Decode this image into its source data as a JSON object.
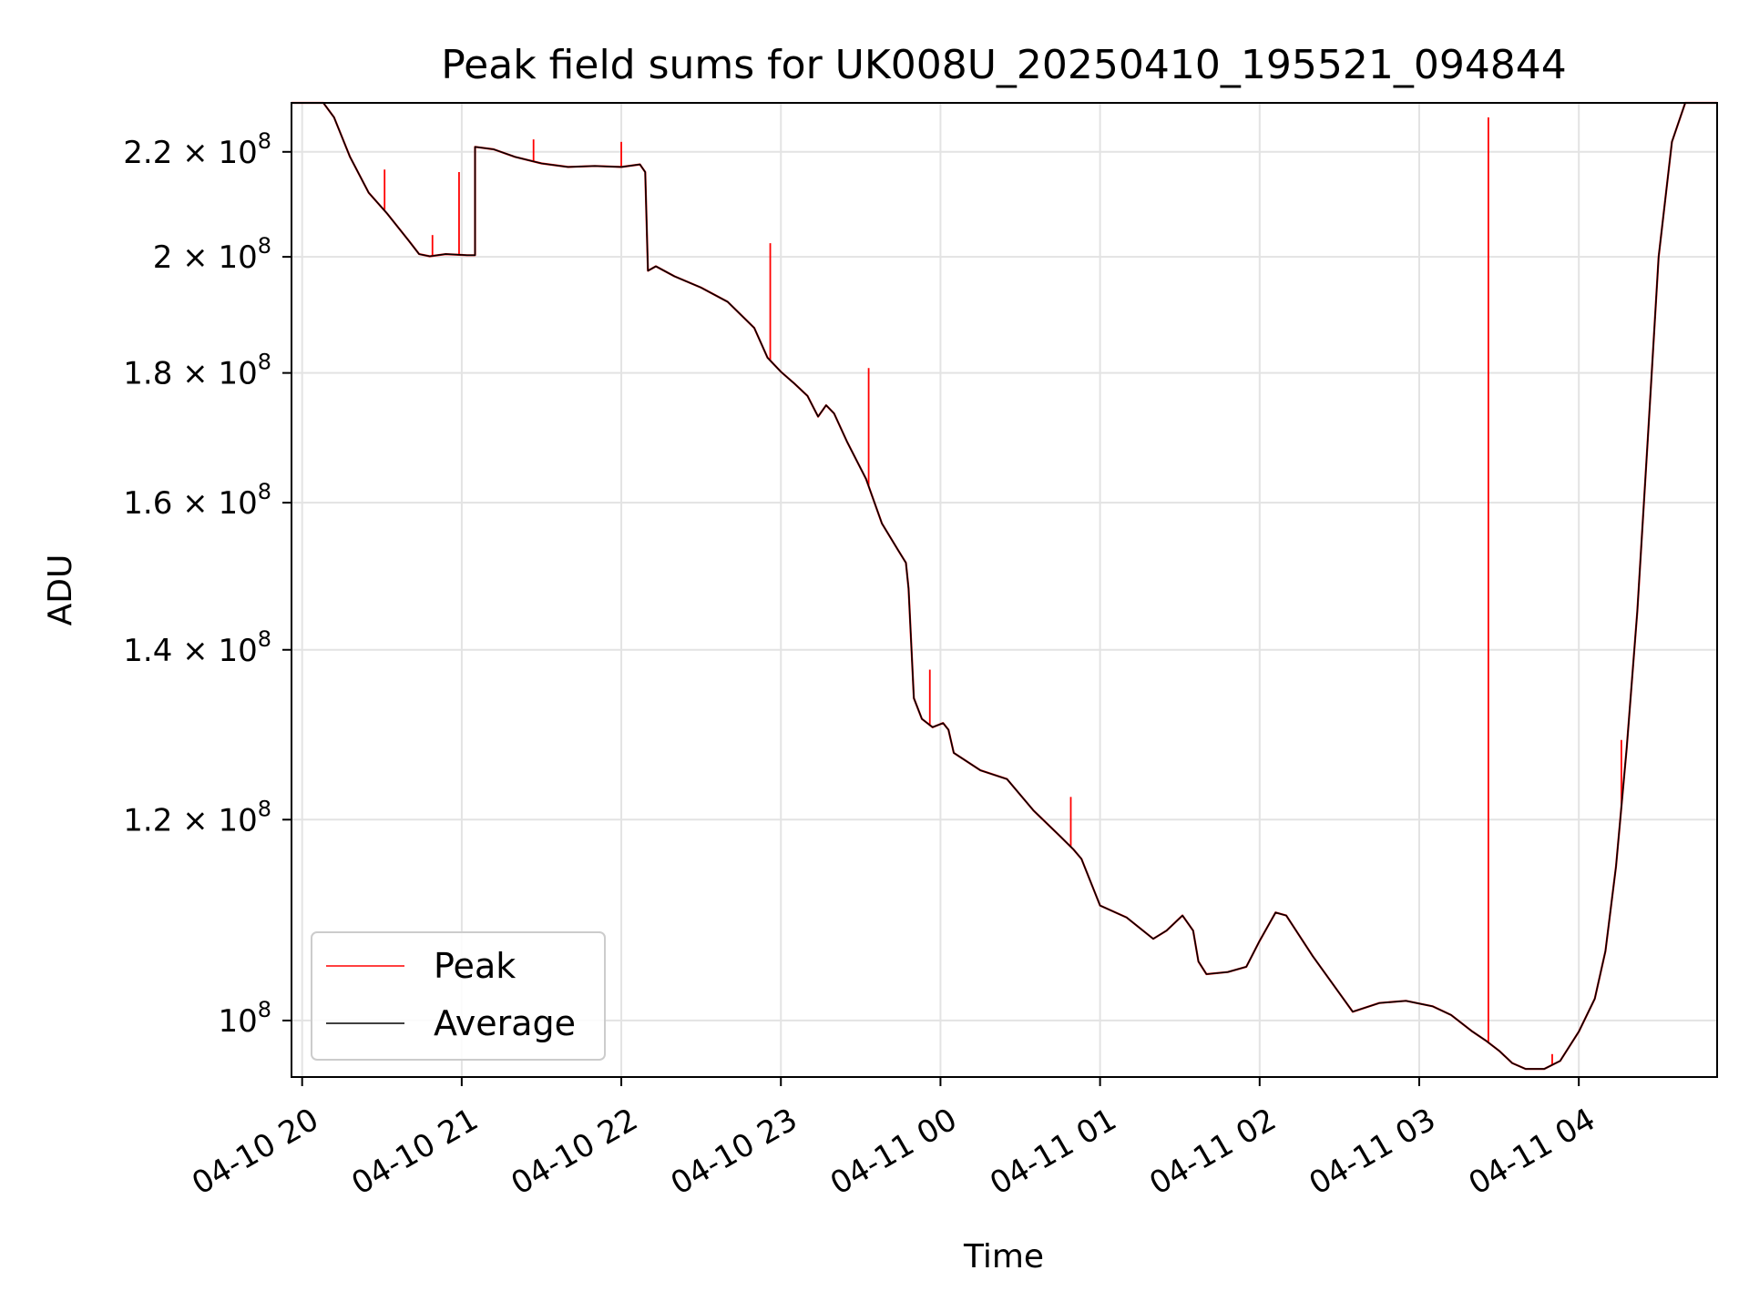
{
  "chart_data": {
    "type": "line",
    "title": "Peak field sums for UK008U_20250410_195521_094844",
    "xlabel": "Time",
    "ylabel": "ADU",
    "yscale": "log",
    "ylim": [
      95000000,
      230000000
    ],
    "xlim": [
      "2025-04-10 19:56",
      "2025-04-11 04:52"
    ],
    "grid": true,
    "legend_position": "lower-left",
    "x_ticks": [
      {
        "t": "2025-04-10 20:00",
        "label": "04-10 20"
      },
      {
        "t": "2025-04-10 21:00",
        "label": "04-10 21"
      },
      {
        "t": "2025-04-10 22:00",
        "label": "04-10 22"
      },
      {
        "t": "2025-04-10 23:00",
        "label": "04-10 23"
      },
      {
        "t": "2025-04-11 00:00",
        "label": "04-11 00"
      },
      {
        "t": "2025-04-11 01:00",
        "label": "04-11 01"
      },
      {
        "t": "2025-04-11 02:00",
        "label": "04-11 02"
      },
      {
        "t": "2025-04-11 03:00",
        "label": "04-11 03"
      },
      {
        "t": "2025-04-11 04:00",
        "label": "04-11 04"
      }
    ],
    "y_ticks": [
      {
        "value": 100000000,
        "mantissa": "",
        "exp": "8"
      },
      {
        "value": 120000000,
        "mantissa": "1.2",
        "exp": "8"
      },
      {
        "value": 140000000,
        "mantissa": "1.4",
        "exp": "8"
      },
      {
        "value": 160000000,
        "mantissa": "1.6",
        "exp": "8"
      },
      {
        "value": 180000000,
        "mantissa": "1.8",
        "exp": "8"
      },
      {
        "value": 200000000,
        "mantissa": "2",
        "exp": "8"
      },
      {
        "value": 220000000,
        "mantissa": "2.2",
        "exp": "8"
      }
    ],
    "series": [
      {
        "name": "Average",
        "color": "#000000",
        "points": [
          [
            "2025-04-10 19:56",
            230000000
          ],
          [
            "2025-04-10 20:08",
            230000000
          ],
          [
            "2025-04-10 20:12",
            227000000
          ],
          [
            "2025-04-10 20:18",
            219000000
          ],
          [
            "2025-04-10 20:25",
            212000000
          ],
          [
            "2025-04-10 20:32",
            208000000
          ],
          [
            "2025-04-10 20:40",
            203000000
          ],
          [
            "2025-04-10 20:44",
            200500000
          ],
          [
            "2025-04-10 20:48",
            200100000
          ],
          [
            "2025-04-10 20:54",
            200500000
          ],
          [
            "2025-04-10 21:02",
            200300000
          ],
          [
            "2025-04-10 21:05",
            200300000
          ],
          [
            "2025-04-10 21:05",
            221000000
          ],
          [
            "2025-04-10 21:12",
            220500000
          ],
          [
            "2025-04-10 21:20",
            219000000
          ],
          [
            "2025-04-10 21:30",
            217700000
          ],
          [
            "2025-04-10 21:40",
            217000000
          ],
          [
            "2025-04-10 21:50",
            217200000
          ],
          [
            "2025-04-10 22:00",
            217000000
          ],
          [
            "2025-04-10 22:07",
            217500000
          ],
          [
            "2025-04-10 22:09",
            216000000
          ],
          [
            "2025-04-10 22:10",
            197500000
          ],
          [
            "2025-04-10 22:13",
            198300000
          ],
          [
            "2025-04-10 22:20",
            196500000
          ],
          [
            "2025-04-10 22:30",
            194500000
          ],
          [
            "2025-04-10 22:40",
            192000000
          ],
          [
            "2025-04-10 22:50",
            187500000
          ],
          [
            "2025-04-10 22:55",
            182500000
          ],
          [
            "2025-04-10 23:00",
            180200000
          ],
          [
            "2025-04-10 23:05",
            178300000
          ],
          [
            "2025-04-10 23:10",
            176300000
          ],
          [
            "2025-04-10 23:14",
            173000000
          ],
          [
            "2025-04-10 23:17",
            174800000
          ],
          [
            "2025-04-10 23:20",
            173500000
          ],
          [
            "2025-04-10 23:25",
            169000000
          ],
          [
            "2025-04-10 23:32",
            163500000
          ],
          [
            "2025-04-10 23:38",
            157000000
          ],
          [
            "2025-04-10 23:44",
            153300000
          ],
          [
            "2025-04-10 23:47",
            151500000
          ],
          [
            "2025-04-10 23:48",
            148000000
          ],
          [
            "2025-04-10 23:50",
            134000000
          ],
          [
            "2025-04-10 23:53",
            131500000
          ],
          [
            "2025-04-10 23:57",
            130500000
          ],
          [
            "2025-04-11 00:01",
            131000000
          ],
          [
            "2025-04-11 00:03",
            130200000
          ],
          [
            "2025-04-11 00:05",
            127500000
          ],
          [
            "2025-04-11 00:15",
            125500000
          ],
          [
            "2025-04-11 00:25",
            124500000
          ],
          [
            "2025-04-11 00:35",
            121000000
          ],
          [
            "2025-04-11 00:45",
            118200000
          ],
          [
            "2025-04-11 00:50",
            116800000
          ],
          [
            "2025-04-11 00:53",
            115800000
          ],
          [
            "2025-04-11 01:00",
            111000000
          ],
          [
            "2025-04-11 01:10",
            109800000
          ],
          [
            "2025-04-11 01:20",
            107700000
          ],
          [
            "2025-04-11 01:25",
            108500000
          ],
          [
            "2025-04-11 01:31",
            110000000
          ],
          [
            "2025-04-11 01:35",
            108500000
          ],
          [
            "2025-04-11 01:37",
            105500000
          ],
          [
            "2025-04-11 01:40",
            104300000
          ],
          [
            "2025-04-11 01:48",
            104500000
          ],
          [
            "2025-04-11 01:55",
            105000000
          ],
          [
            "2025-04-11 02:00",
            107500000
          ],
          [
            "2025-04-11 02:06",
            110300000
          ],
          [
            "2025-04-11 02:10",
            110000000
          ],
          [
            "2025-04-11 02:20",
            106000000
          ],
          [
            "2025-04-11 02:30",
            102500000
          ],
          [
            "2025-04-11 02:35",
            100800000
          ],
          [
            "2025-04-11 02:45",
            101600000
          ],
          [
            "2025-04-11 02:55",
            101800000
          ],
          [
            "2025-04-11 03:05",
            101300000
          ],
          [
            "2025-04-11 03:12",
            100500000
          ],
          [
            "2025-04-11 03:20",
            99000000
          ],
          [
            "2025-04-11 03:25",
            98200000
          ],
          [
            "2025-04-11 03:30",
            97300000
          ],
          [
            "2025-04-11 03:35",
            96200000
          ],
          [
            "2025-04-11 03:40",
            95700000
          ],
          [
            "2025-04-11 03:47",
            95700000
          ],
          [
            "2025-04-11 03:53",
            96400000
          ],
          [
            "2025-04-11 04:00",
            99000000
          ],
          [
            "2025-04-11 04:06",
            102000000
          ],
          [
            "2025-04-11 04:10",
            106500000
          ],
          [
            "2025-04-11 04:14",
            115000000
          ],
          [
            "2025-04-11 04:18",
            128000000
          ],
          [
            "2025-04-11 04:22",
            145000000
          ],
          [
            "2025-04-11 04:26",
            170000000
          ],
          [
            "2025-04-11 04:30",
            200000000
          ],
          [
            "2025-04-11 04:35",
            222000000
          ],
          [
            "2025-04-11 04:40",
            230000000
          ],
          [
            "2025-04-11 04:52",
            230000000
          ]
        ]
      },
      {
        "name": "Peak",
        "color": "#ff0000",
        "spikes": [
          [
            "2025-04-10 20:31",
            216500000
          ],
          [
            "2025-04-10 20:49",
            204000000
          ],
          [
            "2025-04-10 20:59",
            216000000
          ],
          [
            "2025-04-10 21:27",
            222500000
          ],
          [
            "2025-04-10 22:00",
            222000000
          ],
          [
            "2025-04-10 22:56",
            202500000
          ],
          [
            "2025-04-10 23:33",
            180800000
          ],
          [
            "2025-04-10 23:56",
            137500000
          ],
          [
            "2025-04-11 00:49",
            122500000
          ],
          [
            "2025-04-11 03:26",
            227000000
          ],
          [
            "2025-04-11 03:50",
            97000000
          ],
          [
            "2025-04-11 04:16",
            129000000
          ]
        ]
      }
    ]
  }
}
